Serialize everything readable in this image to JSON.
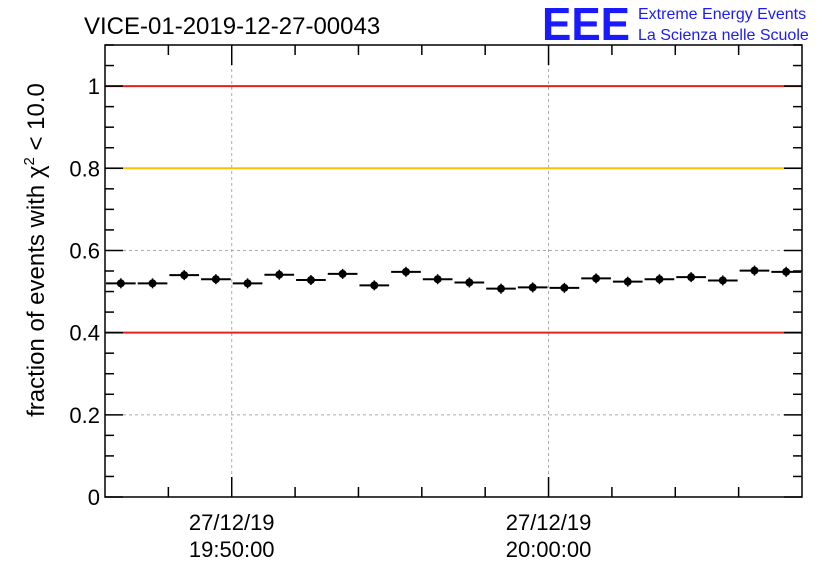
{
  "header": {
    "title": "VICE-01-2019-12-27-00043",
    "logo_text": "EEE",
    "logo_line1": "Extreme Energy Events",
    "logo_line2": "La Scienza nelle Scuole"
  },
  "colors": {
    "red_line": "#e8201a",
    "orange_line": "#ffc000",
    "grid": "#aaaaaa",
    "logo": "#1a1aff"
  },
  "chart_data": {
    "type": "scatter",
    "title": "VICE-01-2019-12-27-00043",
    "ylabel": {
      "prefix": "fraction of events with ",
      "sym": "χ",
      "sup": "2",
      "suffix": " < 10.0"
    },
    "ylim": [
      0,
      1.1
    ],
    "yticks": [
      {
        "v": 0,
        "label": "0"
      },
      {
        "v": 0.2,
        "label": "0.2"
      },
      {
        "v": 0.4,
        "label": "0.4"
      },
      {
        "v": 0.6,
        "label": "0.6"
      },
      {
        "v": 0.8,
        "label": "0.8"
      },
      {
        "v": 1,
        "label": "1"
      }
    ],
    "xlim_minutes": [
      0,
      22
    ],
    "xticks_major": [
      {
        "v": 4,
        "date": "27/12/19",
        "time": "19:50:00"
      },
      {
        "v": 14,
        "date": "27/12/19",
        "time": "20:00:00"
      }
    ],
    "xticks_minor": [
      2,
      6,
      8,
      10,
      12,
      16,
      18,
      20
    ],
    "grid": true,
    "reference_lines": [
      {
        "y": 1.0,
        "color": "red"
      },
      {
        "y": 0.8,
        "color": "orange"
      },
      {
        "y": 0.4,
        "color": "red"
      }
    ],
    "bin_width_minutes": 1,
    "points": [
      {
        "x": 0.5,
        "y": 0.52
      },
      {
        "x": 1.5,
        "y": 0.52
      },
      {
        "x": 2.5,
        "y": 0.54
      },
      {
        "x": 3.5,
        "y": 0.53
      },
      {
        "x": 4.5,
        "y": 0.52
      },
      {
        "x": 5.5,
        "y": 0.541
      },
      {
        "x": 6.5,
        "y": 0.528
      },
      {
        "x": 7.5,
        "y": 0.543
      },
      {
        "x": 8.5,
        "y": 0.515
      },
      {
        "x": 9.5,
        "y": 0.548
      },
      {
        "x": 10.5,
        "y": 0.53
      },
      {
        "x": 11.5,
        "y": 0.522
      },
      {
        "x": 12.5,
        "y": 0.507
      },
      {
        "x": 13.5,
        "y": 0.51
      },
      {
        "x": 14.5,
        "y": 0.509
      },
      {
        "x": 15.5,
        "y": 0.532
      },
      {
        "x": 16.5,
        "y": 0.524
      },
      {
        "x": 17.5,
        "y": 0.53
      },
      {
        "x": 18.5,
        "y": 0.535
      },
      {
        "x": 19.5,
        "y": 0.527
      },
      {
        "x": 20.5,
        "y": 0.551
      },
      {
        "x": 21.5,
        "y": 0.548
      }
    ]
  }
}
